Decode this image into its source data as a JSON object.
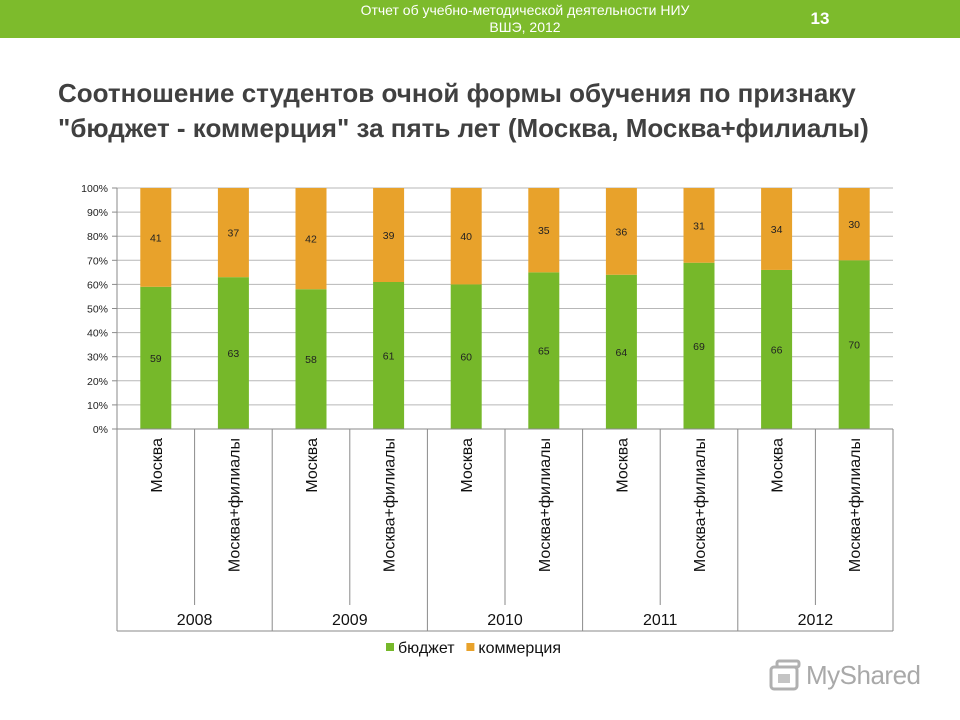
{
  "header": {
    "line1": "Отчет об учебно-методической деятельности НИУ",
    "line2": "ВШЭ, 2012",
    "page_number": "13"
  },
  "slide": {
    "title_line1": "Соотношение студентов очной формы обучения по  признаку",
    "title_line2": "\"бюджет - коммерция\" за пять лет (Москва, Москва+филиалы)"
  },
  "watermark": {
    "text": "MyShared",
    "icon": "myshared-logo-icon"
  },
  "colors": {
    "header": "#7dbb2c",
    "budget": "#76b82a",
    "commerce": "#e8a22b"
  },
  "chart_data": {
    "type": "bar",
    "stacked": true,
    "percent": true,
    "groups": [
      "2008",
      "2009",
      "2010",
      "2011",
      "2012"
    ],
    "categories": [
      "Москва",
      "Москва+филиалы",
      "Москва",
      "Москва+филиалы",
      "Москва",
      "Москва+филиалы",
      "Москва",
      "Москва+филиалы",
      "Москва",
      "Москва+филиалы"
    ],
    "series": [
      {
        "name": "бюджет",
        "values": [
          59,
          63,
          58,
          61,
          60,
          65,
          64,
          69,
          66,
          70
        ]
      },
      {
        "name": "коммерция",
        "values": [
          41,
          37,
          42,
          39,
          40,
          35,
          36,
          31,
          34,
          30
        ]
      }
    ],
    "ylim": [
      0,
      100
    ],
    "yticks": [
      "0%",
      "10%",
      "20%",
      "30%",
      "40%",
      "50%",
      "60%",
      "70%",
      "80%",
      "90%",
      "100%"
    ],
    "grid": true,
    "legend": "bottom"
  }
}
